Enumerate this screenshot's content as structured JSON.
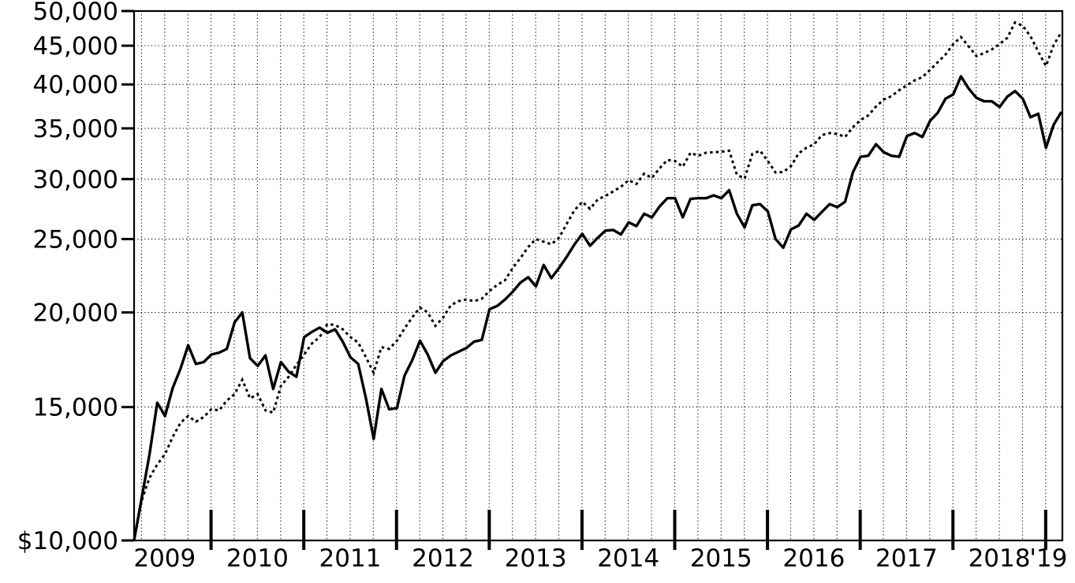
{
  "chart_data": {
    "type": "line",
    "title": "",
    "legend_position": "none",
    "background_color": "#ffffff",
    "foreground_color": "#000000",
    "grid": true,
    "x_axis": {
      "label": "",
      "start_year_decimal": 2009.17,
      "end_year_decimal": 2019.18,
      "step_months": 1,
      "gridline_interval_years": 0.25,
      "year_boundary_ticks": [
        2010,
        2011,
        2012,
        2013,
        2014,
        2015,
        2016,
        2017,
        2018,
        2019
      ],
      "tick_labels": [
        {
          "label": "2009",
          "center": 2009.5
        },
        {
          "label": "2010",
          "center": 2010.5
        },
        {
          "label": "2011",
          "center": 2011.5
        },
        {
          "label": "2012",
          "center": 2012.5
        },
        {
          "label": "2013",
          "center": 2013.5
        },
        {
          "label": "2014",
          "center": 2014.5
        },
        {
          "label": "2015",
          "center": 2015.5
        },
        {
          "label": "2016",
          "center": 2016.5
        },
        {
          "label": "2017",
          "center": 2017.5
        },
        {
          "label": "2018",
          "center": 2018.5
        },
        {
          "label": "'19",
          "center": 2019.03
        }
      ]
    },
    "y_axis": {
      "label": "",
      "scale": "log",
      "min": 10000,
      "max": 50000,
      "ticks": [
        {
          "label": "$10,000",
          "value": 10000
        },
        {
          "label": "15,000",
          "value": 15000
        },
        {
          "label": "20,000",
          "value": 20000
        },
        {
          "label": "25,000",
          "value": 25000
        },
        {
          "label": "30,000",
          "value": 30000
        },
        {
          "label": "35,000",
          "value": 35000
        },
        {
          "label": "40,000",
          "value": 40000
        },
        {
          "label": "45,000",
          "value": 45000
        },
        {
          "label": "50,000",
          "value": 50000
        }
      ]
    },
    "series": [
      {
        "name": "solid-line-series",
        "style": "solid",
        "color": "#000000",
        "values": [
          10000,
          11400,
          13000,
          15200,
          14600,
          15900,
          16850,
          18100,
          17100,
          17200,
          17600,
          17700,
          17900,
          19400,
          20000,
          17400,
          17000,
          17550,
          15850,
          17200,
          16700,
          16450,
          18550,
          18850,
          19100,
          18800,
          19000,
          18300,
          17450,
          17100,
          15400,
          13620,
          15850,
          14900,
          14950,
          16500,
          17300,
          18350,
          17600,
          16650,
          17250,
          17550,
          17750,
          17950,
          18300,
          18400,
          20200,
          20400,
          20800,
          21300,
          21900,
          22260,
          21650,
          23100,
          22200,
          22900,
          23700,
          24600,
          25400,
          24500,
          25100,
          25650,
          25700,
          25350,
          26300,
          26000,
          27000,
          26700,
          27600,
          28300,
          28300,
          26700,
          28250,
          28300,
          28300,
          28550,
          28300,
          29000,
          27000,
          25900,
          27700,
          27800,
          27200,
          25000,
          24350,
          25750,
          26050,
          27000,
          26500,
          27150,
          27800,
          27550,
          28000,
          30600,
          32100,
          32200,
          33350,
          32550,
          32200,
          32100,
          34200,
          34500,
          34100,
          35800,
          36700,
          38300,
          38800,
          41000,
          39500,
          38400,
          38000,
          38000,
          37350,
          38550,
          39200,
          38300,
          36200,
          36600,
          33000,
          35400,
          36800
        ]
      },
      {
        "name": "dotted-line-series",
        "style": "dotted",
        "color": "#000000",
        "values": [
          10000,
          11300,
          12100,
          12600,
          13000,
          13700,
          14300,
          14600,
          14350,
          14550,
          14900,
          14850,
          15300,
          15600,
          16300,
          15400,
          15600,
          14850,
          14750,
          16000,
          16450,
          17050,
          17600,
          18200,
          18550,
          19300,
          19250,
          19000,
          18550,
          18250,
          17450,
          16650,
          18000,
          17900,
          18350,
          19050,
          19700,
          20300,
          20000,
          19200,
          19700,
          20450,
          20700,
          20800,
          20700,
          20850,
          21350,
          21750,
          22050,
          22900,
          23600,
          24400,
          25000,
          24800,
          24600,
          25100,
          26200,
          27300,
          28000,
          27400,
          28200,
          28500,
          28900,
          29300,
          29900,
          29550,
          30500,
          30100,
          31000,
          31800,
          31700,
          31150,
          32500,
          32200,
          32500,
          32550,
          32600,
          32700,
          30400,
          30050,
          32400,
          32700,
          31700,
          30600,
          30650,
          31200,
          32450,
          33000,
          33350,
          34300,
          34500,
          34400,
          34100,
          35100,
          35900,
          36400,
          37400,
          38200,
          38600,
          39300,
          39900,
          40500,
          40900,
          41800,
          42800,
          43800,
          45200,
          46200,
          44900,
          43600,
          44000,
          44500,
          45200,
          46100,
          48300,
          47800,
          46300,
          44200,
          42300,
          45100,
          46900
        ]
      }
    ]
  }
}
